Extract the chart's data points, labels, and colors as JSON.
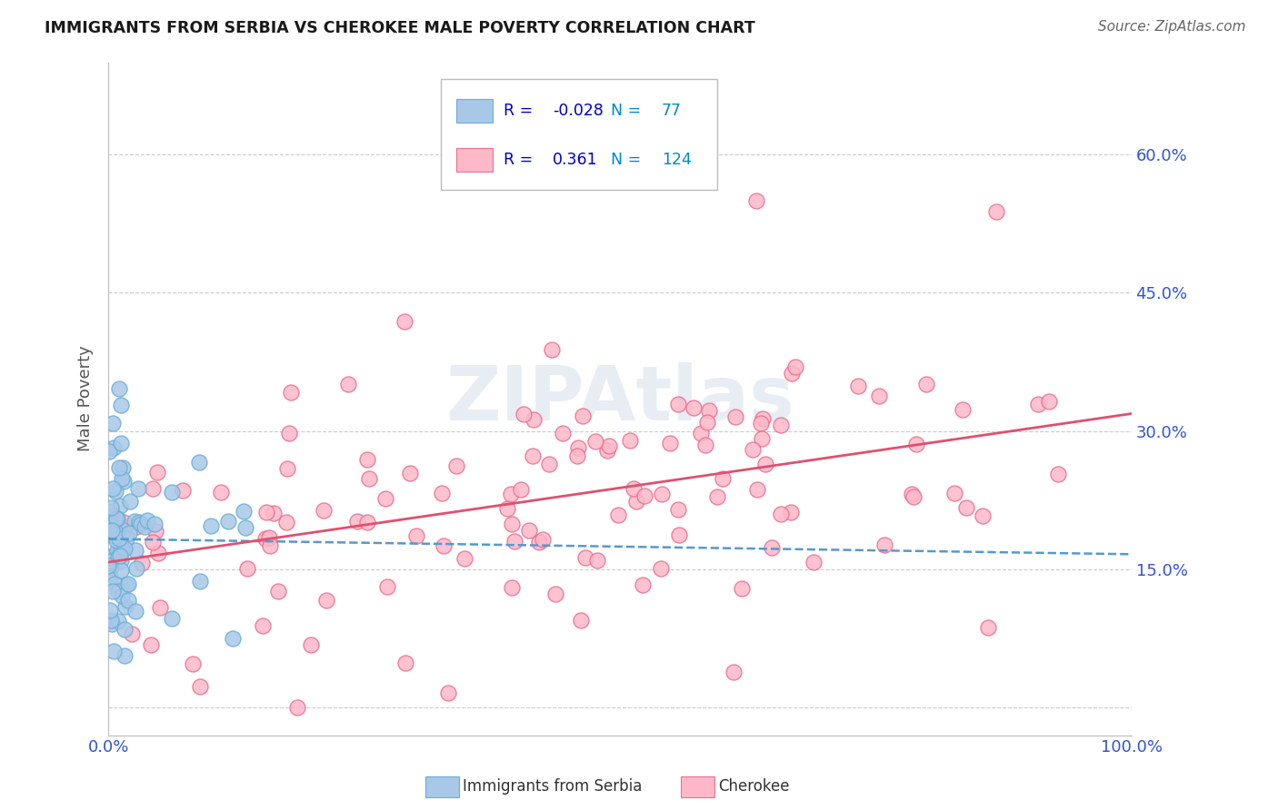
{
  "title": "IMMIGRANTS FROM SERBIA VS CHEROKEE MALE POVERTY CORRELATION CHART",
  "source": "Source: ZipAtlas.com",
  "ylabel": "Male Poverty",
  "xlim": [
    0,
    1
  ],
  "ylim": [
    -0.03,
    0.7
  ],
  "yticks": [
    0.0,
    0.15,
    0.3,
    0.45,
    0.6
  ],
  "ytick_labels": [
    "",
    "15.0%",
    "30.0%",
    "45.0%",
    "60.0%"
  ],
  "xticks": [
    0.0,
    1.0
  ],
  "xtick_labels": [
    "0.0%",
    "100.0%"
  ],
  "series1_name": "Immigrants from Serbia",
  "series1_color": "#a8c8e8",
  "series1_edge_color": "#6baed6",
  "series1_R": -0.028,
  "series1_N": 77,
  "series1_line_color": "#5599cc",
  "series2_name": "Cherokee",
  "series2_color": "#ffb8c8",
  "series2_edge_color": "#e87090",
  "series2_R": 0.361,
  "series2_N": 124,
  "series2_line_color": "#e05070",
  "watermark": "ZIPAtlas",
  "background_color": "#ffffff",
  "grid_color": "#cccccc",
  "title_color": "#1a1a1a",
  "axis_label_color": "#555555",
  "tick_color": "#3355cc",
  "legend_R_color": "#0000bb",
  "legend_N_color": "#0088cc",
  "seed": 42
}
